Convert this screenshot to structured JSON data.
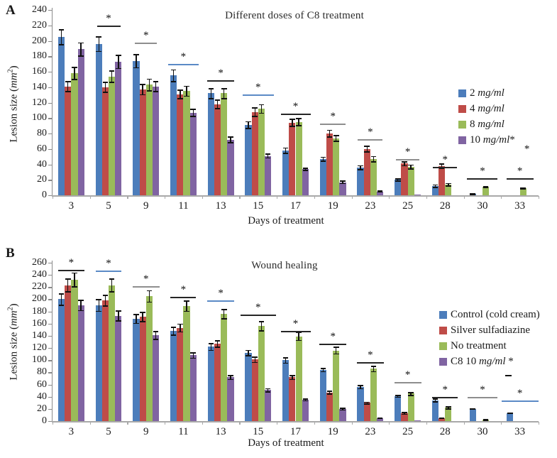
{
  "chart_data": [
    {
      "type": "bar",
      "panel_label": "A",
      "title": "Different doses of C8 treatment",
      "xlabel": "Days of treatment",
      "ylabel": {
        "pre": "Lesion size (",
        "italic": "mm",
        "sup": "2",
        "post": ")"
      },
      "ylim": [
        0,
        240
      ],
      "ytick_step": 20,
      "grid": false,
      "legend_position": "right",
      "categories": [
        "3",
        "5",
        "9",
        "11",
        "13",
        "15",
        "17",
        "19",
        "23",
        "25",
        "28",
        "30",
        "33"
      ],
      "series": [
        {
          "name": "2 mg/ml",
          "italic_part": "mg/ml",
          "color": "#4C7DBB",
          "values": [
            205,
            196,
            174,
            155,
            132,
            91,
            58,
            47,
            36,
            20,
            12,
            2,
            0
          ],
          "errors": [
            10,
            10,
            9,
            8,
            7,
            5,
            4,
            3,
            3,
            2,
            2,
            1,
            0
          ]
        },
        {
          "name": "4 mg/ml",
          "italic_part": "mg/ml",
          "color": "#BF4C48",
          "values": [
            141,
            140,
            137,
            131,
            118,
            108,
            94,
            80,
            60,
            41,
            38,
            0,
            0
          ],
          "errors": [
            7,
            7,
            7,
            6,
            6,
            6,
            5,
            5,
            4,
            3,
            3,
            0,
            0
          ]
        },
        {
          "name": "8 mg/ml",
          "italic_part": "mg/ml",
          "color": "#9ABB59",
          "values": [
            158,
            154,
            143,
            135,
            132,
            112,
            95,
            74,
            47,
            37,
            14,
            11,
            9
          ],
          "errors": [
            8,
            8,
            8,
            7,
            7,
            6,
            5,
            4,
            4,
            3,
            2,
            1,
            1
          ]
        },
        {
          "name": "10 mg/ml*",
          "italic_part": "mg/ml",
          "color": "#8064A2",
          "values": [
            189,
            173,
            141,
            107,
            72,
            51,
            34,
            17,
            5,
            1,
            0,
            0,
            0
          ],
          "errors": [
            9,
            9,
            7,
            5,
            4,
            3,
            2,
            2,
            1,
            0,
            0,
            0,
            0
          ]
        }
      ],
      "significance": [
        {
          "day": "5",
          "y": 220,
          "color": "#262626",
          "len": 33
        },
        {
          "day": "9",
          "y": 198,
          "color": "#8E8E8E",
          "len": 31
        },
        {
          "day": "11",
          "y": 170,
          "color": "#5B8AC6",
          "len": 43
        },
        {
          "day": "13",
          "y": 149,
          "color": "#262626",
          "len": 38
        },
        {
          "day": "15",
          "y": 131,
          "color": "#5B8AC6",
          "len": 44
        },
        {
          "day": "17",
          "y": 106,
          "color": "#262626",
          "len": 42
        },
        {
          "day": "19",
          "y": 93,
          "color": "#8E8E8E",
          "len": 36
        },
        {
          "day": "23",
          "y": 73,
          "color": "#8E8E8E",
          "len": 35
        },
        {
          "day": "25",
          "y": 47,
          "color": "#8E8E8E",
          "len": 33
        },
        {
          "day": "28",
          "y": 37,
          "color": "#262626",
          "len": 34
        },
        {
          "day": "30",
          "y": 22,
          "color": "#262626",
          "len": 43
        },
        {
          "day": "33",
          "y": 22,
          "color": "#262626",
          "len": 38
        }
      ],
      "extra_marks": [
        {
          "type": "asterisk",
          "day": "33",
          "y": 60,
          "dx": 10
        }
      ]
    },
    {
      "type": "bar",
      "panel_label": "B",
      "title": "Wound healing",
      "xlabel": "Days of treatment",
      "ylabel": {
        "pre": "Lesion size (",
        "italic": "mm",
        "sup": "2",
        "post": ")"
      },
      "ylim": [
        0,
        260
      ],
      "ytick_step": 20,
      "grid": false,
      "legend_position": "right",
      "categories": [
        "3",
        "5",
        "9",
        "11",
        "13",
        "15",
        "17",
        "19",
        "23",
        "25",
        "28",
        "30",
        "33"
      ],
      "series": [
        {
          "name": "Control (cold cream)",
          "italic_part": "",
          "color": "#4C7DBB",
          "values": [
            200,
            190,
            168,
            148,
            122,
            112,
            100,
            84,
            56,
            41,
            34,
            20,
            13
          ],
          "errors": [
            10,
            10,
            8,
            7,
            6,
            5,
            5,
            3,
            3,
            2,
            3,
            1,
            1
          ]
        },
        {
          "name": "Silver sulfadiazine",
          "italic_part": "",
          "color": "#BF4C48",
          "values": [
            223,
            198,
            171,
            153,
            127,
            101,
            72,
            47,
            30,
            13,
            5,
            0,
            0
          ],
          "errors": [
            11,
            9,
            8,
            7,
            6,
            5,
            4,
            3,
            2,
            2,
            1,
            0,
            0
          ]
        },
        {
          "name": "No treatment",
          "italic_part": "",
          "color": "#9ABB59",
          "values": [
            232,
            223,
            205,
            189,
            176,
            156,
            139,
            116,
            86,
            45,
            22,
            2,
            0
          ],
          "errors": [
            12,
            11,
            10,
            9,
            8,
            8,
            7,
            6,
            5,
            3,
            2,
            1,
            0
          ]
        },
        {
          "name": "C8 10 mg/ml *",
          "italic_part": "mg/ml",
          "color": "#8064A2",
          "values": [
            190,
            173,
            141,
            108,
            72,
            51,
            35,
            20,
            5,
            1,
            0,
            0,
            0
          ],
          "errors": [
            9,
            9,
            7,
            5,
            4,
            3,
            2,
            2,
            1,
            0,
            0,
            0,
            0
          ]
        }
      ],
      "significance": [
        {
          "day": "3",
          "y": 248,
          "color": "#262626",
          "len": 37
        },
        {
          "day": "5",
          "y": 247,
          "color": "#5B8AC6",
          "len": 36
        },
        {
          "day": "9",
          "y": 221,
          "color": "#8E8E8E",
          "len": 38
        },
        {
          "day": "11",
          "y": 204,
          "color": "#262626",
          "len": 36
        },
        {
          "day": "13",
          "y": 198,
          "color": "#5B8AC6",
          "len": 38
        },
        {
          "day": "15",
          "y": 175,
          "color": "#262626",
          "len": 50
        },
        {
          "day": "17",
          "y": 148,
          "color": "#262626",
          "len": 42
        },
        {
          "day": "19",
          "y": 127,
          "color": "#262626",
          "len": 38
        },
        {
          "day": "23",
          "y": 97,
          "color": "#262626",
          "len": 38
        },
        {
          "day": "25",
          "y": 64,
          "color": "#8E8E8E",
          "len": 38
        },
        {
          "day": "28",
          "y": 40,
          "color": "#262626",
          "len": 36
        },
        {
          "day": "30",
          "y": 40,
          "color": "#8E8E8E",
          "len": 42
        },
        {
          "day": "33",
          "y": 34,
          "color": "#5B8AC6",
          "len": 52
        }
      ],
      "extra_marks": [
        {
          "type": "dash",
          "day": "33",
          "y": 76,
          "dx": -16
        }
      ]
    }
  ]
}
